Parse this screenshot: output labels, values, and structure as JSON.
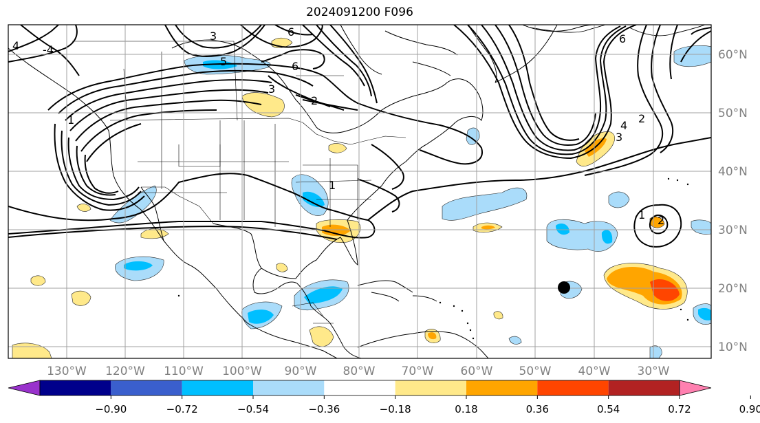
{
  "title": "2024091200 F096",
  "map": {
    "lon_labels": [
      "130°W",
      "120°W",
      "110°W",
      "100°W",
      "90°W",
      "80°W",
      "70°W",
      "60°W",
      "50°W",
      "40°W",
      "30°W"
    ],
    "lat_labels": [
      "60°N",
      "50°N",
      "40°N",
      "30°N",
      "20°N",
      "10°N"
    ],
    "contour_labels": [
      "3",
      "6",
      "5",
      "6",
      "3",
      "2",
      "1",
      "4",
      "6",
      "4",
      "2",
      "3",
      "1",
      "2",
      "1",
      "-4"
    ],
    "grid_color": "#a0a0a0",
    "label_color": "#808080"
  },
  "colorbar": {
    "tick_labels": [
      "−0.90",
      "−0.72",
      "−0.54",
      "−0.36",
      "−0.18",
      "0.18",
      "0.36",
      "0.54",
      "0.72",
      "0.90"
    ],
    "colors": [
      "#9932cc",
      "#00008b",
      "#3a5fcd",
      "#00bfff",
      "#aadcfa",
      "#ffffff",
      "#ffe98a",
      "#ffa500",
      "#ff4500",
      "#b22222",
      "#ff80b0"
    ],
    "levels": [
      -0.9,
      -0.72,
      -0.54,
      -0.36,
      -0.18,
      0.18,
      0.36,
      0.54,
      0.72,
      0.9
    ]
  }
}
